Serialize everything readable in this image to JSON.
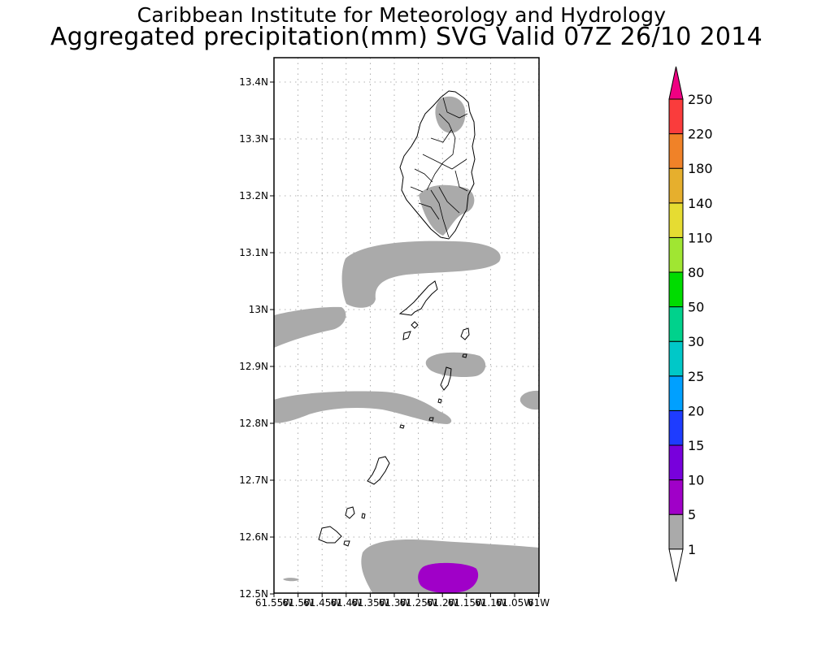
{
  "title_line1": "Caribbean Institute for Meteorology and Hydrology",
  "title_line2": "Aggregated precipitation(mm) SVG Valid 07Z 26/10 2014",
  "map": {
    "lat_labels": [
      "13.4N",
      "13.3N",
      "13.2N",
      "13.1N",
      "13N",
      "12.9N",
      "12.8N",
      "12.7N",
      "12.6N",
      "12.5N"
    ],
    "lon_labels": [
      "61.55W",
      "61.5W",
      "61.45W",
      "61.4W",
      "61.35W",
      "61.3W",
      "61.25W",
      "61.2W",
      "61.15W",
      "61.1W",
      "61.05W",
      "61W"
    ],
    "land_outline_color": "#000000",
    "background_color": "#ffffff"
  },
  "colorbar": {
    "labels": [
      "1",
      "5",
      "10",
      "15",
      "20",
      "25",
      "30",
      "50",
      "80",
      "110",
      "140",
      "180",
      "220",
      "250"
    ],
    "colors": [
      "#aaaaaa",
      "#a000c8",
      "#7800dc",
      "#1e3cff",
      "#00a0ff",
      "#00c8c8",
      "#00d28c",
      "#00dc00",
      "#a0e632",
      "#e6dc32",
      "#e6af2d",
      "#f08228",
      "#fa3c3c",
      "#f00082"
    ]
  }
}
